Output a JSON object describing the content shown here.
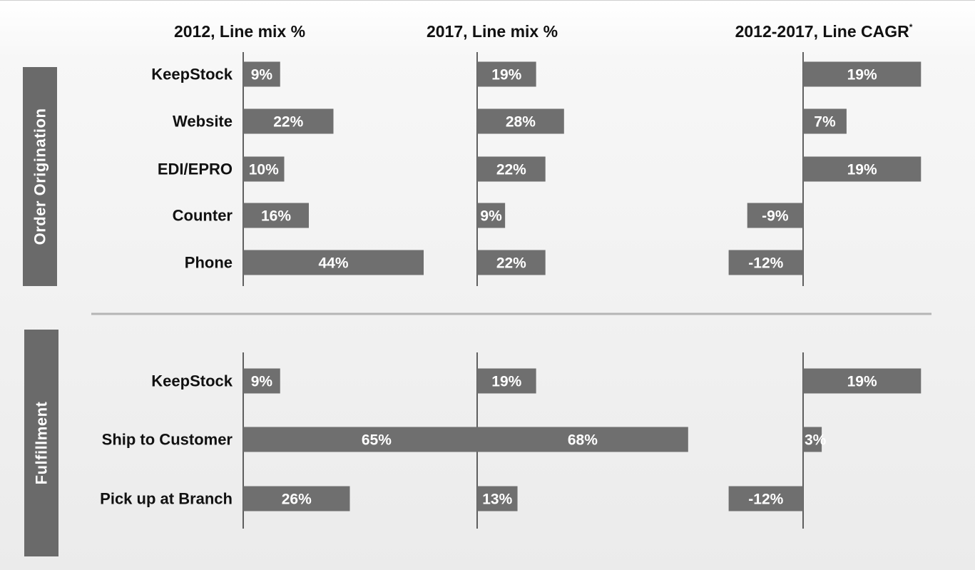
{
  "chart_data": {
    "type": "bar",
    "orientation": "horizontal",
    "columns": [
      {
        "title": "2012, Line mix %",
        "title_sup": ""
      },
      {
        "title": "2017, Line mix %",
        "title_sup": ""
      },
      {
        "title": "2012-2017, Line CAGR",
        "title_sup": "*"
      }
    ],
    "sections": [
      {
        "name": "Order Origination",
        "categories": [
          "KeepStock",
          "Website",
          "EDI/EPRO",
          "Counter",
          "Phone"
        ],
        "series": [
          {
            "values": [
              9,
              22,
              10,
              16,
              44
            ],
            "labels": [
              "9%",
              "22%",
              "10%",
              "16%",
              "44%"
            ]
          },
          {
            "values": [
              19,
              28,
              22,
              9,
              22
            ],
            "labels": [
              "19%",
              "28%",
              "22%",
              "9%",
              "22%"
            ]
          },
          {
            "values": [
              19,
              7,
              19,
              -9,
              -12
            ],
            "labels": [
              "19%",
              "7%",
              "19%",
              "-9%",
              "-12%"
            ]
          }
        ]
      },
      {
        "name": "Fulfillment",
        "categories": [
          "KeepStock",
          "Ship to Customer",
          "Pick up at Branch"
        ],
        "series": [
          {
            "values": [
              9,
              65,
              26
            ],
            "labels": [
              "9%",
              "65%",
              "26%"
            ]
          },
          {
            "values": [
              19,
              68,
              13
            ],
            "labels": [
              "19%",
              "68%",
              "13%"
            ]
          },
          {
            "values": [
              19,
              3,
              -12
            ],
            "labels": [
              "19%",
              "3%",
              "-12%"
            ]
          }
        ]
      }
    ],
    "colors": {
      "bar": "#6f6f6f",
      "axis": "#222222",
      "section_box": "#6a6a6a",
      "divider": "#b5b5b5"
    },
    "legend": "none",
    "grid": false
  }
}
